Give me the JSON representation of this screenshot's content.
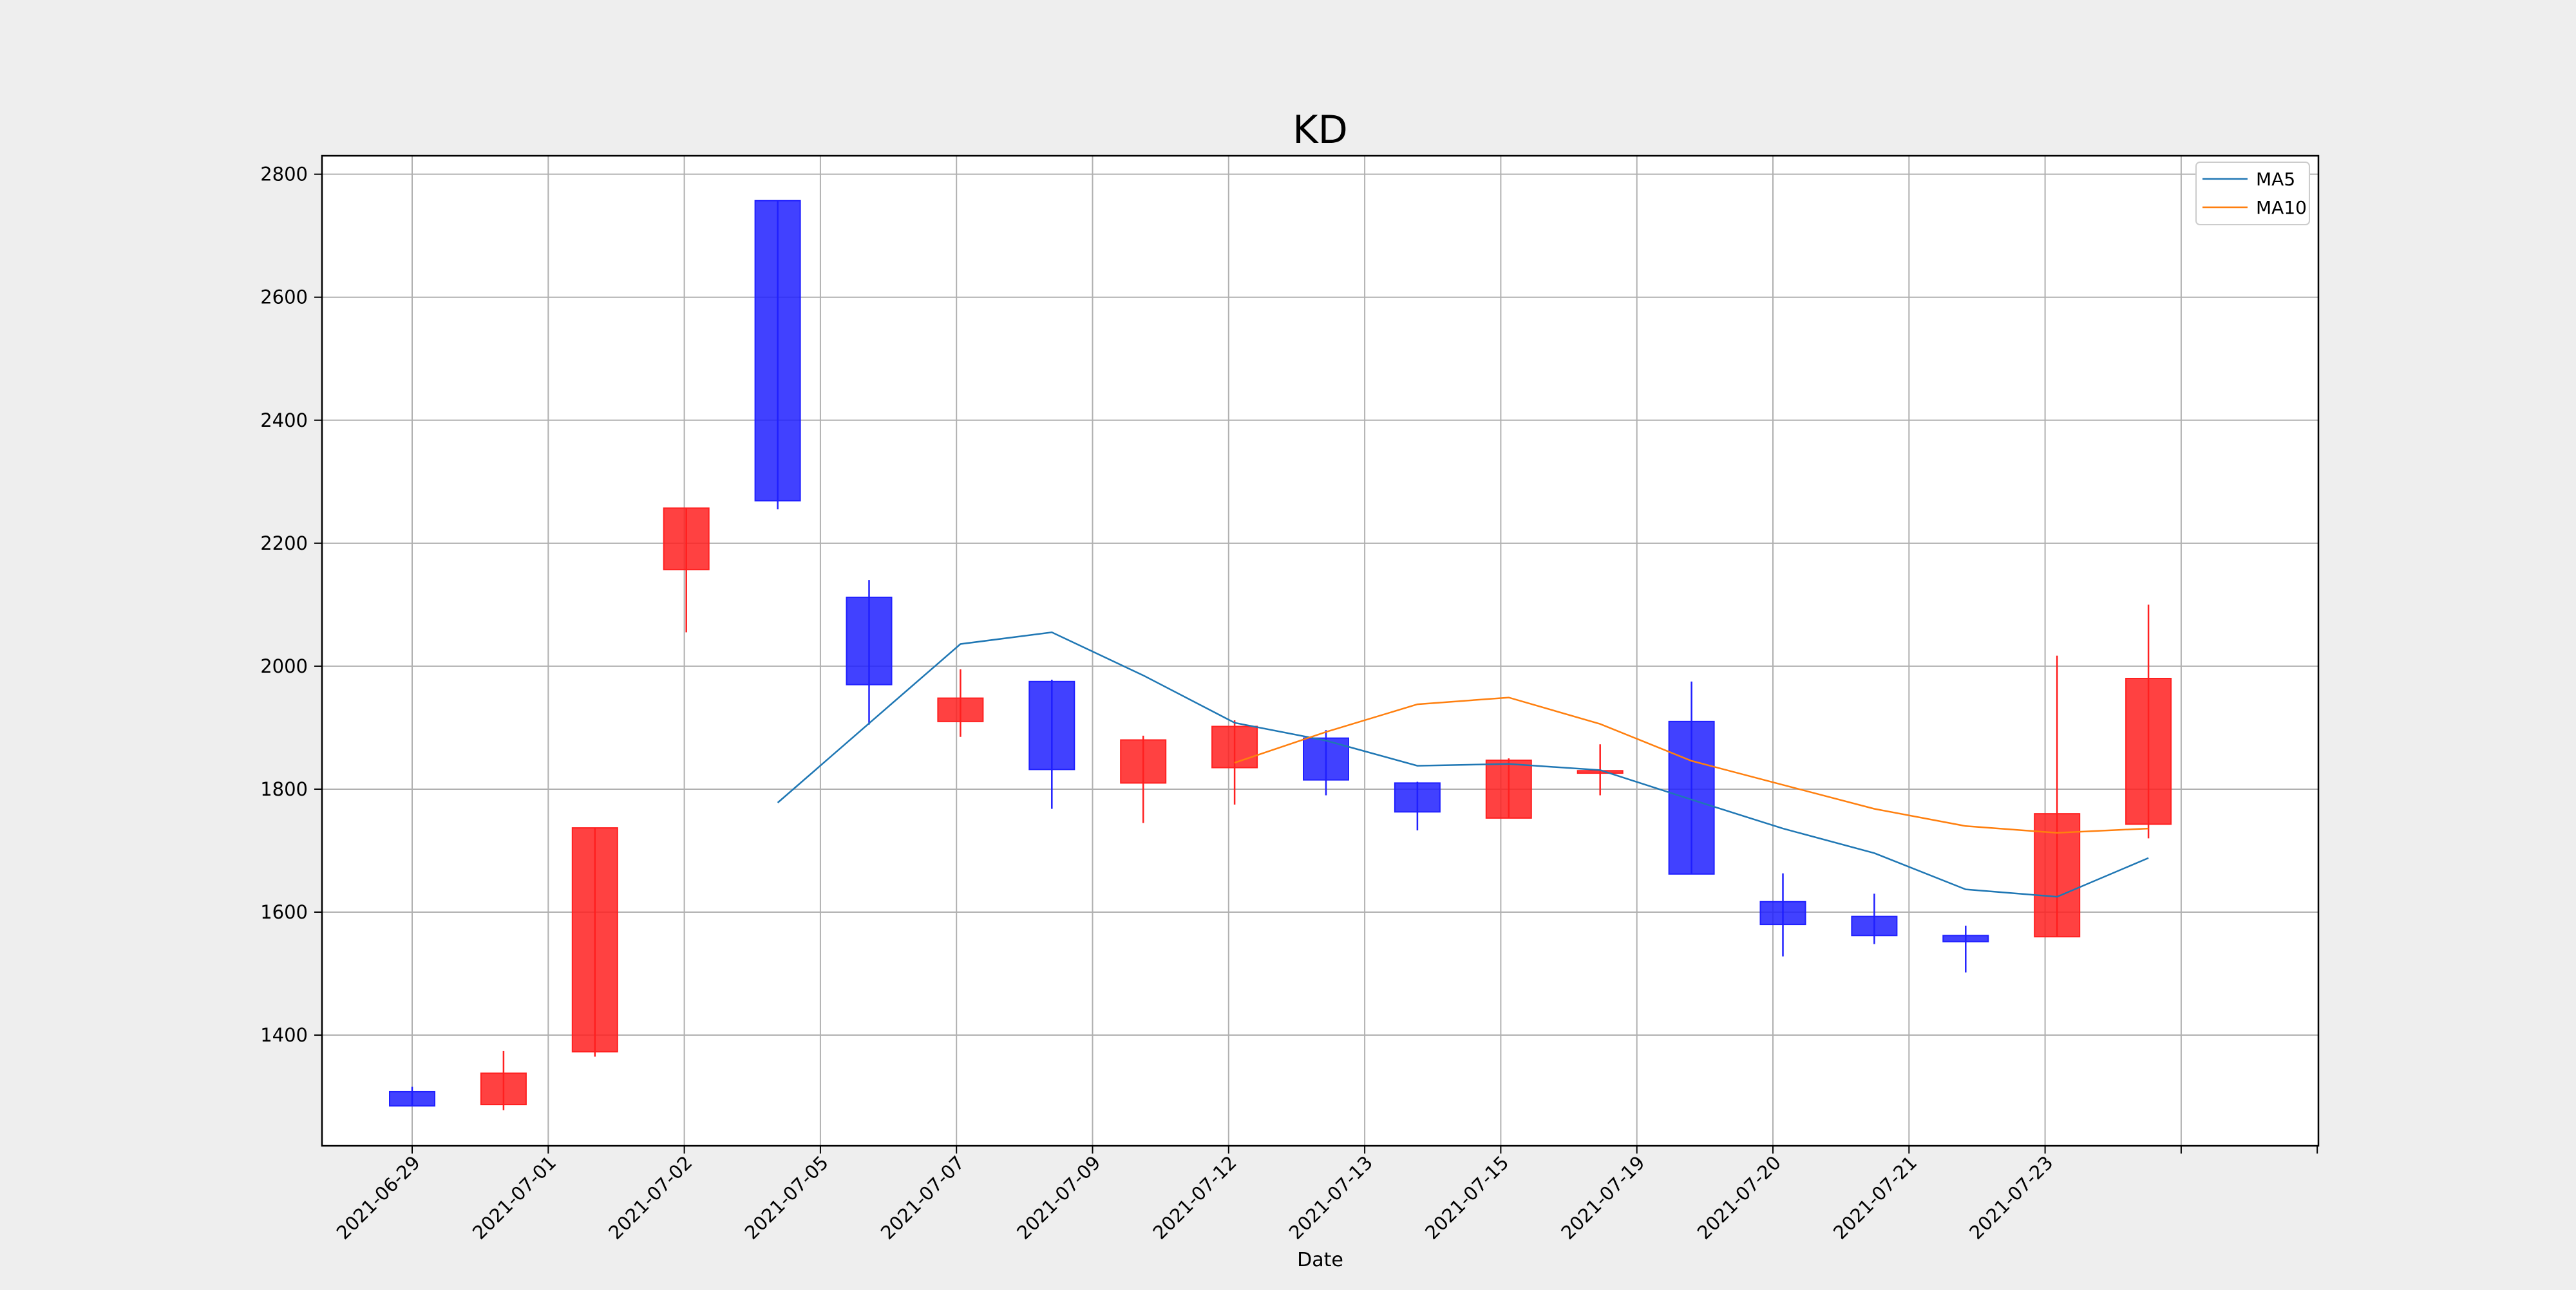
{
  "chart_data": {
    "type": "candlestick",
    "title": "KD",
    "xlabel": "Date",
    "ylabel": "",
    "ylim": [
      1220,
      2830
    ],
    "yticks": [
      1400,
      1600,
      1800,
      2000,
      2200,
      2400,
      2600,
      2800
    ],
    "grid": true,
    "legend_position": "top-right",
    "colors": {
      "up": "#ff2020",
      "down": "#2020ff",
      "ma5": "#1f77b4",
      "ma10": "#ff7f0e",
      "background": "#eeeeee",
      "plot_background": "#ffffff",
      "grid": "#b0b0b0"
    },
    "x_tick_labels": [
      "2021-06-29",
      "2021-07-01",
      "2021-07-02",
      "2021-07-05",
      "2021-07-07",
      "2021-07-09",
      "2021-07-12",
      "2021-07-13",
      "2021-07-15",
      "2021-07-19",
      "2021-07-20",
      "2021-07-21",
      "2021-07-23"
    ],
    "candles": [
      {
        "open": 1308,
        "close": 1285,
        "high": 1316,
        "low": 1285
      },
      {
        "open": 1287,
        "close": 1338,
        "high": 1374,
        "low": 1278
      },
      {
        "open": 1373,
        "close": 1737,
        "high": 1737,
        "low": 1365
      },
      {
        "open": 2157,
        "close": 2257,
        "high": 2257,
        "low": 2055
      },
      {
        "open": 2757,
        "close": 2269,
        "high": 2757,
        "low": 2255
      },
      {
        "open": 2112,
        "close": 1970,
        "high": 2140,
        "low": 1905
      },
      {
        "open": 1910,
        "close": 1948,
        "high": 1995,
        "low": 1885
      },
      {
        "open": 1975,
        "close": 1832,
        "high": 1978,
        "low": 1768
      },
      {
        "open": 1810,
        "close": 1880,
        "high": 1887,
        "low": 1745
      },
      {
        "open": 1835,
        "close": 1902,
        "high": 1912,
        "low": 1775
      },
      {
        "open": 1883,
        "close": 1815,
        "high": 1896,
        "low": 1790
      },
      {
        "open": 1810,
        "close": 1763,
        "high": 1812,
        "low": 1733
      },
      {
        "open": 1753,
        "close": 1847,
        "high": 1850,
        "low": 1753
      },
      {
        "open": 1826,
        "close": 1830,
        "high": 1873,
        "low": 1790
      },
      {
        "open": 1910,
        "close": 1662,
        "high": 1975,
        "low": 1662
      },
      {
        "open": 1617,
        "close": 1580,
        "high": 1663,
        "low": 1528
      },
      {
        "open": 1593,
        "close": 1562,
        "high": 1630,
        "low": 1548
      },
      {
        "open": 1562,
        "close": 1552,
        "high": 1578,
        "low": 1502
      },
      {
        "open": 1560,
        "close": 1760,
        "high": 2017,
        "low": 1560
      },
      {
        "open": 1743,
        "close": 1980,
        "high": 2100,
        "low": 1720
      }
    ],
    "series": [
      {
        "name": "MA5",
        "values": [
          null,
          null,
          null,
          null,
          1778,
          1907,
          2036,
          2055,
          1985,
          1908,
          1879,
          1838,
          1841,
          1831,
          1783,
          1736,
          1696,
          1637,
          1625,
          1688
        ]
      },
      {
        "name": "MA10",
        "values": [
          null,
          null,
          null,
          null,
          null,
          null,
          null,
          null,
          null,
          1843,
          1893,
          1938,
          1949,
          1906,
          1846,
          1807,
          1768,
          1740,
          1729,
          1736
        ]
      }
    ]
  }
}
